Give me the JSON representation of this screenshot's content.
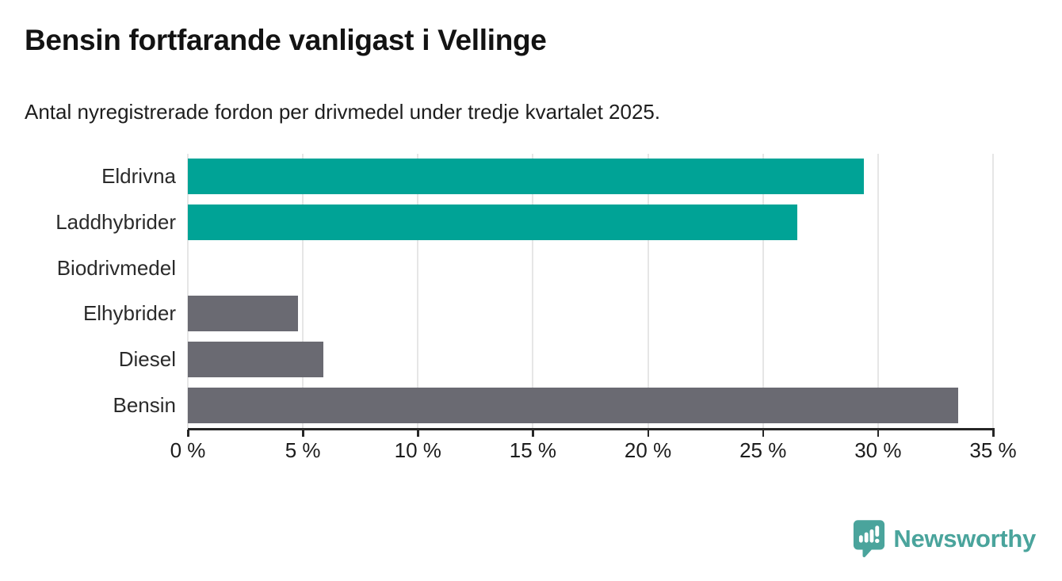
{
  "header": {
    "title": "Bensin fortfarande vanligast i Vellinge",
    "subtitle": "Antal nyregistrerade fordon per drivmedel under tredje kvartalet 2025."
  },
  "chart_data": {
    "type": "bar",
    "orientation": "horizontal",
    "title": "Bensin fortfarande vanligast i Vellinge",
    "subtitle": "Antal nyregistrerade fordon per drivmedel under tredje kvartalet 2025.",
    "categories": [
      "Eldrivna",
      "Laddhybrider",
      "Biodrivmedel",
      "Elhybrider",
      "Diesel",
      "Bensin"
    ],
    "values": [
      29.4,
      26.5,
      0,
      4.8,
      5.9,
      33.5
    ],
    "unit": "%",
    "bar_colors": [
      "#00a396",
      "#00a396",
      "#00a396",
      "#6a6a72",
      "#6a6a72",
      "#6a6a72"
    ],
    "xlim": [
      0,
      35
    ],
    "x_ticks": [
      0,
      5,
      10,
      15,
      20,
      25,
      30,
      35
    ],
    "x_tick_labels": [
      "0 %",
      "5 %",
      "10 %",
      "15 %",
      "20 %",
      "25 %",
      "30 %",
      "35 %"
    ],
    "grid": true,
    "legend": false,
    "xlabel": "",
    "ylabel": ""
  },
  "branding": {
    "logo_text": "Newsworthy",
    "logo_icon": "speech-bubble-bar-chart-icon"
  },
  "colors": {
    "teal": "#00a396",
    "gray": "#6a6a72",
    "grid": "#e6e6e6",
    "axis": "#262626",
    "logo": "#4aa49c"
  }
}
